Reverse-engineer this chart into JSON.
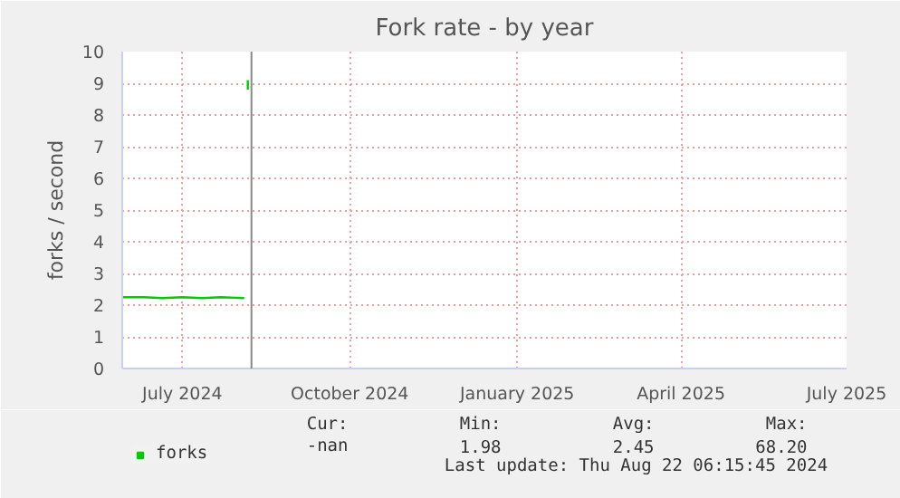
{
  "chart_data": {
    "type": "line",
    "title": "Fork rate - by year",
    "ylabel": "forks / second",
    "xlim": [
      "2024-05-29",
      "2025-07-01"
    ],
    "xticks": [
      {
        "value": "2024-07-01",
        "label": "July 2024"
      },
      {
        "value": "2024-10-01",
        "label": "October 2024"
      },
      {
        "value": "2025-01-01",
        "label": "January 2025"
      },
      {
        "value": "2025-04-01",
        "label": "April 2025"
      },
      {
        "value": "2025-07-01",
        "label": "July 2025"
      }
    ],
    "ylim": [
      0,
      10
    ],
    "yticks": [
      0,
      1,
      2,
      3,
      4,
      5,
      6,
      7,
      8,
      9,
      10
    ],
    "grid": true,
    "legend": "bottom left",
    "marker": "none",
    "line_style": "solid",
    "series": [
      {
        "name": "forks",
        "color": "#00cc00",
        "x": [
          "2024-05-29",
          "2024-06-10",
          "2024-06-20",
          "2024-07-01",
          "2024-07-12",
          "2024-07-22",
          "2024-08-04",
          "2024-08-05",
          "2024-08-06",
          "2024-08-06"
        ],
        "values": [
          2.25,
          2.25,
          2.22,
          2.25,
          2.22,
          2.25,
          2.22,
          null,
          8.8,
          9.1
        ]
      }
    ],
    "ref_lines": [
      {
        "axis": "x",
        "value": "2024-08-08",
        "color": "#888888"
      }
    ],
    "annotations": [
      "Cur:",
      "Min:",
      "Avg:",
      "Max:",
      "-nan",
      "1.98",
      "2.45",
      "68.20",
      "Last update: Thu Aug 22 06:15:45 2024"
    ]
  }
}
